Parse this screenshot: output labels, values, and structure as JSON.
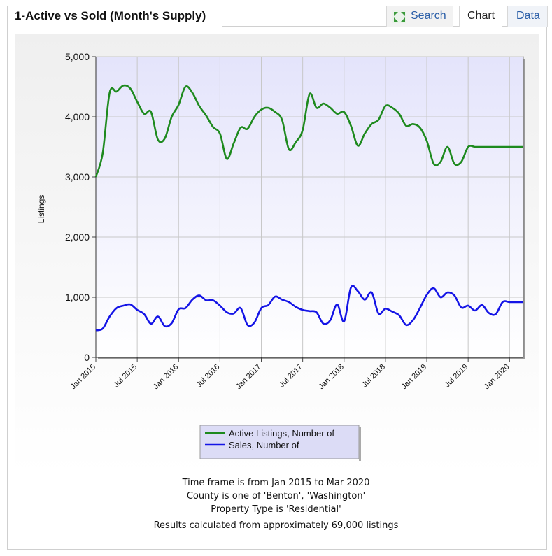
{
  "header": {
    "title": "1-Active vs Sold (Month's Supply)",
    "tabs": {
      "search": "Search",
      "chart": "Chart",
      "data": "Data"
    }
  },
  "chart_data": {
    "type": "line",
    "ylabel": "Listings",
    "ylim": [
      0,
      5000
    ],
    "yticks": [
      0,
      1000,
      2000,
      3000,
      4000,
      5000
    ],
    "ytick_labels": [
      "0",
      "1,000",
      "2,000",
      "3,000",
      "4,000",
      "5,000"
    ],
    "xtick_labels": [
      "Jan 2015",
      "Jul 2015",
      "Jan 2016",
      "Jul 2016",
      "Jan 2017",
      "Jul 2017",
      "Jan 2018",
      "Jul 2018",
      "Jan 2019",
      "Jul 2019",
      "Jan 2020"
    ],
    "x": [
      "Jan 2015",
      "Feb 2015",
      "Mar 2015",
      "Apr 2015",
      "May 2015",
      "Jun 2015",
      "Jul 2015",
      "Aug 2015",
      "Sep 2015",
      "Oct 2015",
      "Nov 2015",
      "Dec 2015",
      "Jan 2016",
      "Feb 2016",
      "Mar 2016",
      "Apr 2016",
      "May 2016",
      "Jun 2016",
      "Jul 2016",
      "Aug 2016",
      "Sep 2016",
      "Oct 2016",
      "Nov 2016",
      "Dec 2016",
      "Jan 2017",
      "Feb 2017",
      "Mar 2017",
      "Apr 2017",
      "May 2017",
      "Jun 2017",
      "Jul 2017",
      "Aug 2017",
      "Sep 2017",
      "Oct 2017",
      "Nov 2017",
      "Dec 2017",
      "Jan 2018",
      "Feb 2018",
      "Mar 2018",
      "Apr 2018",
      "May 2018",
      "Jun 2018",
      "Jul 2018",
      "Aug 2018",
      "Sep 2018",
      "Oct 2018",
      "Nov 2018",
      "Dec 2018",
      "Jan 2019",
      "Feb 2019",
      "Mar 2019",
      "Apr 2019",
      "May 2019",
      "Jun 2019",
      "Jul 2019",
      "Aug 2019",
      "Sep 2019",
      "Oct 2019",
      "Nov 2019",
      "Dec 2019",
      "Jan 2020",
      "Feb 2020",
      "Mar 2020"
    ],
    "series": [
      {
        "name": "Active Listings, Number of",
        "color": "#1e8a1e",
        "values": [
          3000,
          3400,
          4400,
          4420,
          4520,
          4470,
          4250,
          4050,
          4080,
          3620,
          3640,
          4000,
          4200,
          4500,
          4400,
          4180,
          4020,
          3830,
          3720,
          3300,
          3560,
          3820,
          3800,
          4000,
          4120,
          4150,
          4080,
          3950,
          3460,
          3580,
          3780,
          4380,
          4150,
          4220,
          4150,
          4050,
          4080,
          3850,
          3520,
          3720,
          3880,
          3950,
          4180,
          4150,
          4050,
          3850,
          3880,
          3820,
          3600,
          3220,
          3250,
          3500,
          3220,
          3250,
          3500,
          3500,
          3500,
          3500,
          3500,
          3500,
          3500,
          3500,
          3500
        ]
      },
      {
        "name": "Sales, Number of",
        "color": "#1414e6",
        "values": [
          450,
          480,
          680,
          820,
          860,
          880,
          790,
          720,
          560,
          680,
          520,
          570,
          800,
          820,
          960,
          1030,
          950,
          950,
          860,
          750,
          730,
          820,
          540,
          580,
          820,
          870,
          1010,
          960,
          920,
          840,
          790,
          770,
          750,
          560,
          620,
          880,
          600,
          1160,
          1100,
          960,
          1080,
          730,
          810,
          760,
          700,
          540,
          620,
          820,
          1040,
          1150,
          1000,
          1080,
          1030,
          830,
          860,
          780,
          870,
          740,
          720,
          920,
          920,
          920,
          920
        ]
      }
    ]
  },
  "captions": {
    "line1": "Time frame is from Jan 2015 to Mar 2020",
    "line2": "County is one of 'Benton', 'Washington'",
    "line3": "Property Type is 'Residential'",
    "line4": "Results calculated from approximately 69,000 listings"
  }
}
